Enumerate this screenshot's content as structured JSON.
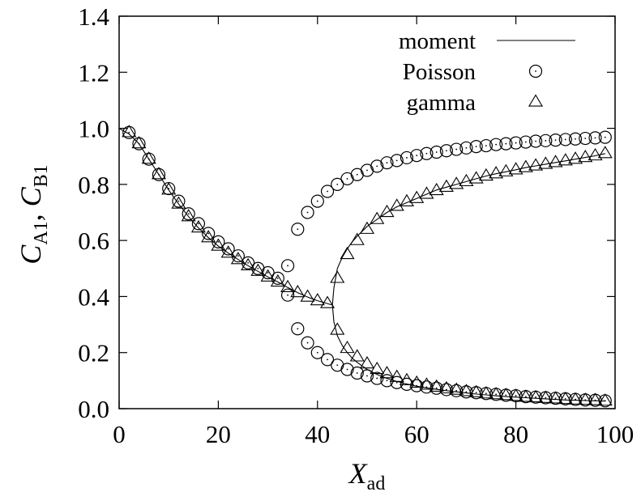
{
  "chart_data": {
    "type": "scatter",
    "xlabel": {
      "main": "X",
      "sub": "ad"
    },
    "ylabel": [
      {
        "main": "C",
        "sub": "A1"
      },
      {
        "main": ", ",
        "sub": ""
      },
      {
        "main": "C",
        "sub": "B1"
      }
    ],
    "xlim": [
      0,
      100
    ],
    "ylim": [
      0.0,
      1.4
    ],
    "x_ticks": [
      "0",
      "20",
      "40",
      "60",
      "80",
      "100"
    ],
    "y_ticks": [
      "0.0",
      "0.2",
      "0.4",
      "0.6",
      "0.8",
      "1.0",
      "1.2",
      "1.4"
    ],
    "x_tick_values": [
      0,
      20,
      40,
      60,
      80,
      100
    ],
    "y_tick_values": [
      0.0,
      0.2,
      0.4,
      0.6,
      0.8,
      1.0,
      1.2,
      1.4
    ],
    "grid": false,
    "legend_position": "top-right",
    "series": [
      {
        "name": "moment",
        "style": "line",
        "branches": [
          {
            "x": [
              0,
              2,
              4,
              6,
              8,
              10,
              12,
              14,
              16,
              18,
              20,
              22,
              24,
              26,
              28,
              30,
              32,
              34,
              36,
              38,
              40,
              42,
              42.5,
              43
            ],
            "y": [
              1.0,
              0.98,
              0.945,
              0.89,
              0.835,
              0.78,
              0.73,
              0.685,
              0.645,
              0.61,
              0.58,
              0.555,
              0.532,
              0.51,
              0.49,
              0.47,
              0.452,
              0.432,
              0.414,
              0.398,
              0.385,
              0.375,
              0.372,
              0.37
            ]
          },
          {
            "x": [
              43,
              43.3,
              44,
              45,
              46,
              47,
              48,
              50,
              52,
              54,
              56,
              58,
              60,
              62,
              64,
              66,
              68,
              70,
              72,
              74,
              76,
              78,
              80,
              82,
              84,
              86,
              88,
              90,
              92,
              94,
              96,
              98
            ],
            "y": [
              0.37,
              0.43,
              0.5,
              0.54,
              0.57,
              0.595,
              0.615,
              0.65,
              0.675,
              0.7,
              0.72,
              0.735,
              0.75,
              0.765,
              0.78,
              0.79,
              0.8,
              0.81,
              0.82,
              0.83,
              0.838,
              0.845,
              0.852,
              0.86,
              0.866,
              0.872,
              0.878,
              0.884,
              0.89,
              0.896,
              0.902,
              0.91
            ]
          },
          {
            "x": [
              43,
              43.3,
              44,
              45,
              46,
              47,
              48,
              50,
              52,
              54,
              56,
              58,
              60,
              62,
              64,
              66,
              68,
              70,
              72,
              74,
              76,
              78,
              80,
              82,
              84,
              86,
              88,
              90,
              92,
              94,
              96,
              98
            ],
            "y": [
              0.37,
              0.31,
              0.26,
              0.225,
              0.2,
              0.18,
              0.165,
              0.14,
              0.122,
              0.108,
              0.097,
              0.088,
              0.08,
              0.074,
              0.069,
              0.064,
              0.06,
              0.056,
              0.052,
              0.049,
              0.046,
              0.043,
              0.041,
              0.039,
              0.037,
              0.035,
              0.033,
              0.031,
              0.03,
              0.029,
              0.028,
              0.027
            ]
          }
        ]
      },
      {
        "name": "Poisson",
        "style": "circle",
        "x": [
          2,
          4,
          6,
          8,
          10,
          12,
          14,
          16,
          18,
          20,
          22,
          24,
          26,
          28,
          30,
          32,
          34,
          34,
          36,
          36,
          38,
          38,
          40,
          40,
          42,
          42,
          44,
          44,
          46,
          46,
          48,
          48,
          50,
          50,
          52,
          52,
          54,
          54,
          56,
          56,
          58,
          58,
          60,
          60,
          62,
          62,
          64,
          64,
          66,
          66,
          68,
          68,
          70,
          70,
          72,
          72,
          74,
          74,
          76,
          76,
          78,
          78,
          80,
          80,
          82,
          82,
          84,
          84,
          86,
          86,
          88,
          88,
          90,
          90,
          92,
          92,
          94,
          94,
          96,
          96,
          98,
          98
        ],
        "y": [
          0.985,
          0.945,
          0.89,
          0.835,
          0.785,
          0.74,
          0.695,
          0.66,
          0.625,
          0.595,
          0.57,
          0.545,
          0.52,
          0.5,
          0.485,
          0.465,
          0.51,
          0.405,
          0.64,
          0.285,
          0.7,
          0.235,
          0.74,
          0.2,
          0.775,
          0.175,
          0.8,
          0.155,
          0.82,
          0.14,
          0.835,
          0.127,
          0.85,
          0.117,
          0.865,
          0.108,
          0.877,
          0.1,
          0.885,
          0.093,
          0.895,
          0.087,
          0.903,
          0.082,
          0.91,
          0.077,
          0.915,
          0.073,
          0.92,
          0.068,
          0.925,
          0.064,
          0.93,
          0.06,
          0.935,
          0.057,
          0.938,
          0.054,
          0.942,
          0.051,
          0.945,
          0.048,
          0.948,
          0.046,
          0.951,
          0.043,
          0.954,
          0.041,
          0.956,
          0.039,
          0.958,
          0.037,
          0.96,
          0.035,
          0.962,
          0.033,
          0.964,
          0.031,
          0.966,
          0.03,
          0.968,
          0.028
        ]
      },
      {
        "name": "gamma",
        "style": "triangle",
        "x": [
          2,
          4,
          6,
          8,
          10,
          12,
          14,
          16,
          18,
          20,
          22,
          24,
          26,
          28,
          30,
          32,
          34,
          36,
          38,
          40,
          42,
          44,
          44,
          46,
          46,
          48,
          48,
          50,
          50,
          52,
          52,
          54,
          54,
          56,
          56,
          58,
          58,
          60,
          60,
          62,
          62,
          64,
          64,
          66,
          66,
          68,
          68,
          70,
          70,
          72,
          72,
          74,
          74,
          76,
          76,
          78,
          78,
          80,
          80,
          82,
          82,
          84,
          84,
          86,
          86,
          88,
          88,
          90,
          90,
          92,
          92,
          94,
          94,
          96,
          96,
          98,
          98
        ],
        "y": [
          0.985,
          0.945,
          0.89,
          0.835,
          0.78,
          0.73,
          0.685,
          0.645,
          0.61,
          0.58,
          0.555,
          0.532,
          0.51,
          0.49,
          0.47,
          0.452,
          0.432,
          0.414,
          0.398,
          0.385,
          0.375,
          0.465,
          0.28,
          0.55,
          0.215,
          0.6,
          0.185,
          0.64,
          0.16,
          0.675,
          0.14,
          0.7,
          0.125,
          0.722,
          0.112,
          0.738,
          0.1,
          0.75,
          0.091,
          0.765,
          0.084,
          0.778,
          0.077,
          0.79,
          0.071,
          0.8,
          0.066,
          0.81,
          0.061,
          0.82,
          0.057,
          0.83,
          0.053,
          0.838,
          0.05,
          0.845,
          0.047,
          0.852,
          0.044,
          0.86,
          0.041,
          0.866,
          0.039,
          0.872,
          0.037,
          0.878,
          0.035,
          0.884,
          0.033,
          0.89,
          0.031,
          0.896,
          0.03,
          0.902,
          0.029,
          0.91,
          0.027
        ]
      }
    ]
  }
}
